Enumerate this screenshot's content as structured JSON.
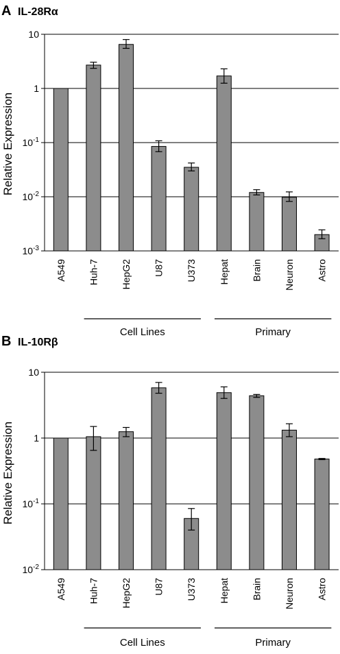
{
  "chart_data": [
    {
      "type": "bar",
      "panel_letter": "A",
      "title": "IL-28Rα",
      "ylabel": "Relative Expression",
      "yscale": "log",
      "ylim": [
        0.001,
        10
      ],
      "yticks": [
        0.001,
        0.01,
        0.1,
        1,
        10
      ],
      "ytick_labels": [
        {
          "base": "10",
          "exp": "-3"
        },
        {
          "base": "10",
          "exp": "-2"
        },
        {
          "base": "10",
          "exp": "-1"
        },
        {
          "base": "1",
          "exp": ""
        },
        {
          "base": "10",
          "exp": ""
        }
      ],
      "grid": true,
      "categories": [
        "A549",
        "Huh-7",
        "HepG2",
        "U87",
        "U373",
        "Hepat",
        "Brain",
        "Neuron",
        "Astro"
      ],
      "values": [
        1.0,
        2.7,
        6.5,
        0.085,
        0.035,
        1.7,
        0.012,
        0.0098,
        0.002
      ],
      "err_low": [
        1.0,
        2.35,
        5.5,
        0.068,
        0.03,
        1.25,
        0.0108,
        0.0082,
        0.00168
      ],
      "err_high": [
        1.0,
        3.05,
        8.0,
        0.108,
        0.042,
        2.3,
        0.0135,
        0.0123,
        0.00245
      ],
      "groups": [
        {
          "label": "Cell Lines",
          "from": 1,
          "to": 4
        },
        {
          "label": "Primary",
          "from": 5,
          "to": 8
        }
      ]
    },
    {
      "type": "bar",
      "panel_letter": "B",
      "title": "IL-10Rβ",
      "ylabel": "Relative Expression",
      "yscale": "log",
      "ylim": [
        0.01,
        10
      ],
      "yticks": [
        0.01,
        0.1,
        1,
        10
      ],
      "ytick_labels": [
        {
          "base": "10",
          "exp": "-2"
        },
        {
          "base": "10",
          "exp": "-1"
        },
        {
          "base": "1",
          "exp": ""
        },
        {
          "base": "10",
          "exp": ""
        }
      ],
      "grid": true,
      "categories": [
        "A549",
        "Huh-7",
        "HepG2",
        "U87",
        "U373",
        "Hepat",
        "Brain",
        "Neuron",
        "Astro"
      ],
      "values": [
        1.0,
        1.05,
        1.25,
        5.8,
        0.06,
        4.9,
        4.4,
        1.32,
        0.48
      ],
      "err_low": [
        1.0,
        0.65,
        1.05,
        4.8,
        0.04,
        4.0,
        4.15,
        1.05,
        0.47
      ],
      "err_high": [
        1.0,
        1.5,
        1.45,
        7.0,
        0.085,
        6.0,
        4.6,
        1.65,
        0.49
      ],
      "groups": [
        {
          "label": "Cell Lines",
          "from": 1,
          "to": 4
        },
        {
          "label": "Primary",
          "from": 5,
          "to": 8
        }
      ]
    }
  ]
}
